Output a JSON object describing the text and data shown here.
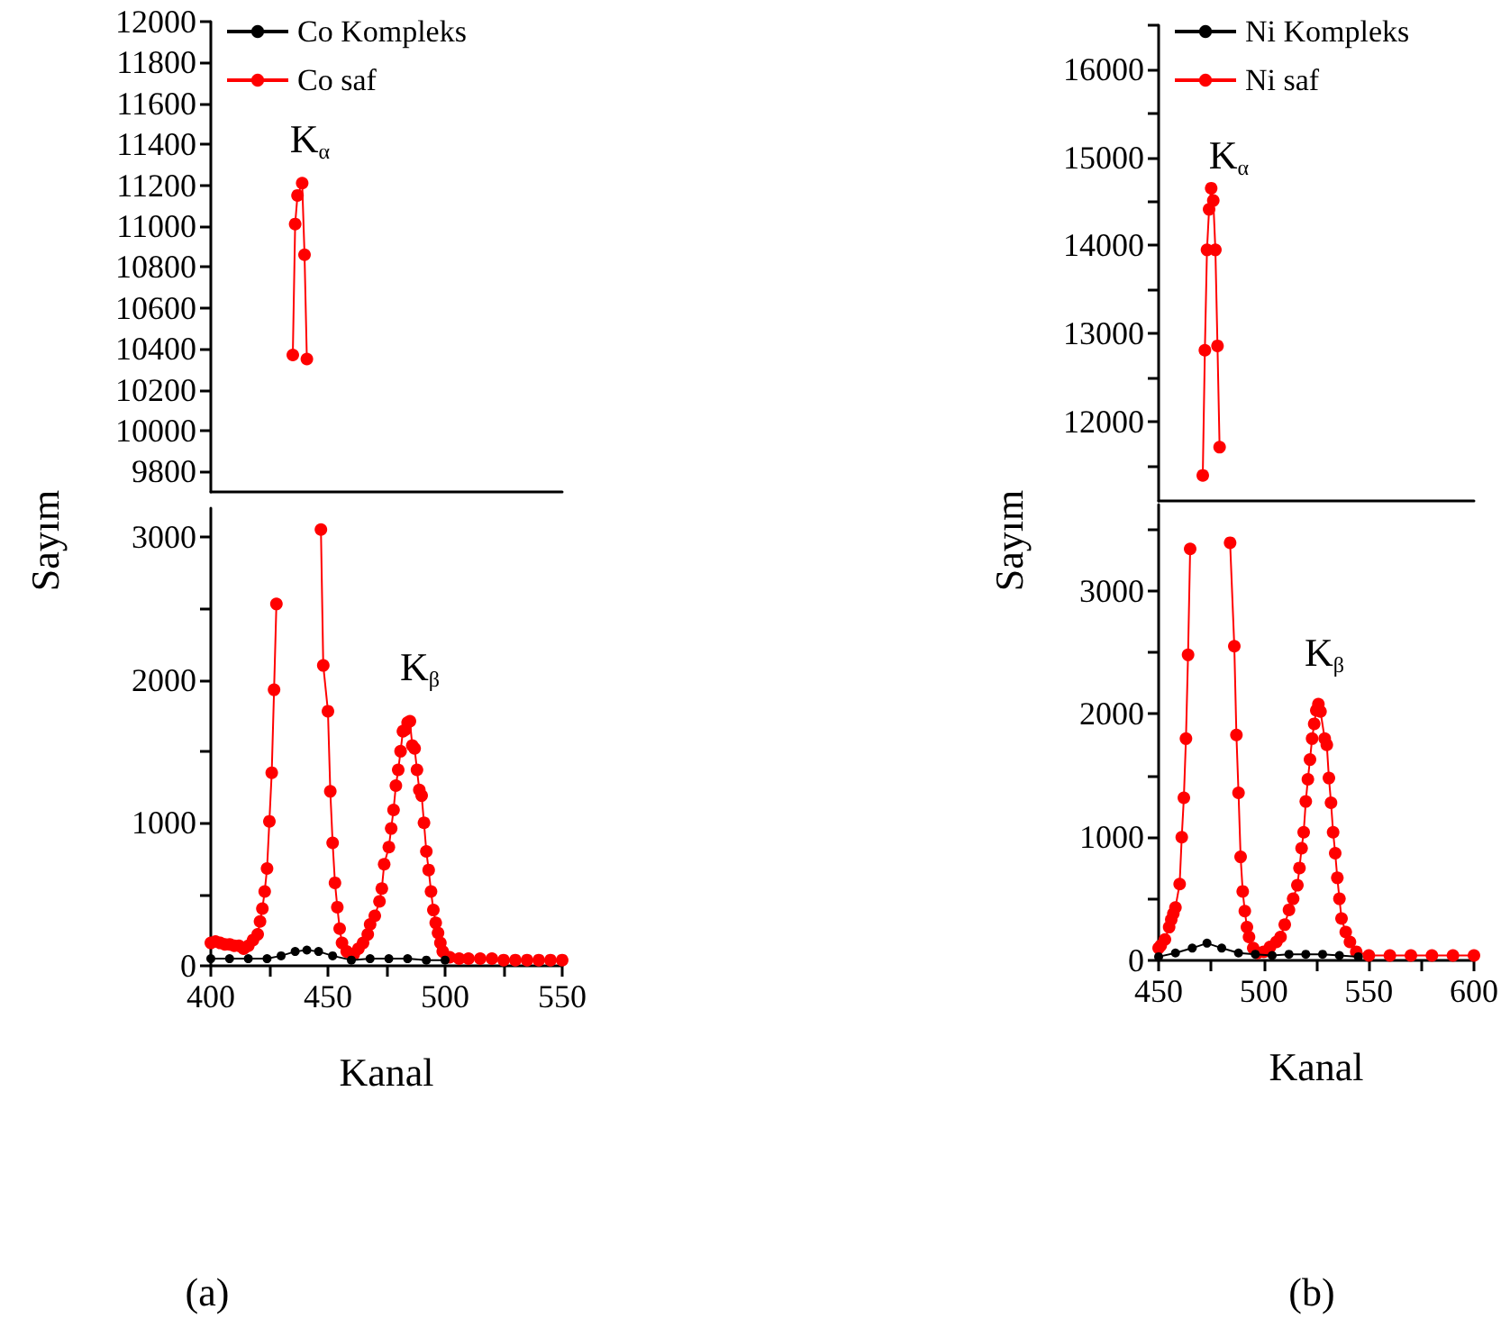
{
  "chart_data": [
    {
      "type": "line",
      "xlim": [
        400,
        550
      ],
      "ylim": [
        9700,
        12000
      ],
      "yticks": [
        9800,
        10000,
        10200,
        10400,
        10600,
        10800,
        11000,
        11200,
        11400,
        11600,
        11800,
        12000
      ],
      "tick_labels": "y",
      "grid": false,
      "marker": "circle",
      "line_style": "solid",
      "annotations": [
        "K$_{α}$"
      ],
      "series": [
        {
          "color": "#ff0000",
          "x": [
            435,
            436,
            437,
            439,
            440,
            441
          ],
          "values": [
            10370,
            11010,
            11150,
            11210,
            10860,
            10350
          ]
        }
      ]
    },
    {
      "type": "line",
      "xlabel": "Kanal",
      "ylabel": "Sayım",
      "xlim": [
        400,
        550
      ],
      "ylim": [
        0,
        3200
      ],
      "xticks": [
        400,
        {
          "value": 425,
          "label": null
        },
        450,
        {
          "value": 475,
          "label": null
        },
        500,
        {
          "value": 525,
          "label": null
        },
        550
      ],
      "yticks": [
        0,
        {
          "value": 500,
          "label": null
        },
        1000,
        {
          "value": 1500,
          "label": null
        },
        2000,
        {
          "value": 2500,
          "label": null
        },
        3000
      ],
      "grid": false,
      "legend": "top left",
      "marker": "circle",
      "line_style": "solid",
      "annotations": [
        "K$_{β}$",
        "(a)"
      ],
      "series": [
        {
          "name": "Co Kompleks",
          "color": "#000000",
          "x": [
            400,
            408,
            416,
            424,
            430,
            436,
            441,
            446,
            452,
            460,
            468,
            476,
            484,
            492,
            500
          ],
          "values": [
            50,
            50,
            50,
            50,
            70,
            100,
            110,
            100,
            70,
            40,
            50,
            50,
            50,
            40,
            40
          ]
        },
        {
          "name": "Co saf",
          "color": "#ff0000",
          "x": [
            400,
            402,
            404,
            406,
            408,
            410,
            412,
            414,
            416,
            418,
            420,
            421,
            422,
            423,
            424,
            425,
            426,
            427,
            428,
            429,
            447,
            448,
            450,
            451,
            452,
            453,
            454,
            455,
            456,
            458,
            460,
            461,
            463,
            465,
            467,
            468,
            470,
            472,
            473,
            474,
            476,
            477,
            478,
            479,
            480,
            481,
            482,
            483,
            484,
            485,
            486,
            487,
            488,
            489,
            490,
            491,
            492,
            493,
            494,
            495,
            496,
            497,
            498,
            499,
            502,
            506,
            510,
            515,
            520,
            525,
            530,
            535,
            540,
            545,
            550
          ],
          "values": [
            160,
            170,
            160,
            150,
            150,
            140,
            140,
            120,
            140,
            180,
            220,
            310,
            400,
            520,
            680,
            1010,
            1350,
            1930,
            2530,
            null,
            3050,
            2100,
            1780,
            1220,
            860,
            580,
            410,
            260,
            160,
            100,
            80,
            80,
            120,
            160,
            220,
            290,
            350,
            450,
            540,
            710,
            830,
            960,
            1090,
            1260,
            1370,
            1500,
            1640,
            1650,
            1700,
            1710,
            1540,
            1520,
            1370,
            1230,
            1190,
            1000,
            800,
            670,
            520,
            390,
            300,
            230,
            160,
            100,
            60,
            50,
            50,
            50,
            50,
            40,
            40,
            40,
            40,
            40,
            40
          ]
        }
      ]
    },
    {
      "type": "line",
      "xlim": [
        450,
        600
      ],
      "ylim": [
        11100,
        16500
      ],
      "yticks": [
        {
          "value": 11500,
          "label": null
        },
        12000,
        {
          "value": 12500,
          "label": null
        },
        13000,
        {
          "value": 13500,
          "label": null
        },
        14000,
        {
          "value": 14500,
          "label": null
        },
        15000,
        {
          "value": 15500,
          "label": null
        },
        16000,
        {
          "value": 16500,
          "label": null
        }
      ],
      "tick_labels": "y",
      "grid": false,
      "marker": "circle",
      "line_style": "solid",
      "annotations": [
        "K$_{α}$"
      ],
      "series": [
        {
          "color": "#ff0000",
          "x": [
            471,
            472,
            473,
            474,
            475,
            476,
            477,
            478,
            479
          ],
          "values": [
            11390,
            12810,
            13950,
            14410,
            14650,
            14510,
            13950,
            12860,
            11710
          ]
        }
      ]
    },
    {
      "type": "line",
      "xlabel": "Kanal",
      "ylabel": "Sayım",
      "xlim": [
        450,
        600
      ],
      "ylim": [
        0,
        3700
      ],
      "xticks": [
        450,
        {
          "value": 475,
          "label": null
        },
        500,
        {
          "value": 525,
          "label": null
        },
        550,
        {
          "value": 575,
          "label": null
        },
        600
      ],
      "yticks": [
        0,
        {
          "value": 500,
          "label": null
        },
        1000,
        {
          "value": 1500,
          "label": null
        },
        2000,
        {
          "value": 2500,
          "label": null
        },
        3000,
        {
          "value": 3500,
          "label": null
        }
      ],
      "grid": false,
      "legend": "top left",
      "marker": "circle",
      "line_style": "solid",
      "annotations": [
        "K$_{β}$",
        "(b)"
      ],
      "series": [
        {
          "name": "Ni Kompleks",
          "color": "#000000",
          "x": [
            450,
            458,
            466,
            473,
            480,
            488,
            496,
            504,
            512,
            520,
            528,
            536,
            545
          ],
          "values": [
            30,
            60,
            100,
            140,
            100,
            60,
            50,
            40,
            50,
            50,
            50,
            40,
            30
          ]
        },
        {
          "name": "Ni saf",
          "color": "#ff0000",
          "x": [
            450,
            451,
            453,
            455,
            456,
            457,
            458,
            460,
            461,
            462,
            463,
            464,
            465,
            466,
            484,
            486,
            487,
            488,
            489,
            490,
            491,
            492,
            493,
            495,
            497,
            500,
            503,
            506,
            508,
            510,
            512,
            514,
            516,
            517,
            518,
            519,
            520,
            521,
            522,
            523,
            524,
            525,
            526,
            527,
            529,
            530,
            531,
            532,
            533,
            534,
            535,
            536,
            537,
            539,
            541,
            544,
            550,
            560,
            570,
            580,
            590,
            600
          ],
          "values": [
            100,
            120,
            170,
            270,
            330,
            380,
            430,
            620,
            1000,
            1320,
            1800,
            2480,
            3340,
            null,
            3390,
            2550,
            1830,
            1360,
            840,
            560,
            400,
            270,
            190,
            100,
            60,
            70,
            110,
            150,
            190,
            290,
            410,
            500,
            610,
            750,
            910,
            1040,
            1290,
            1470,
            1630,
            1800,
            1920,
            2030,
            2080,
            2020,
            1800,
            1750,
            1480,
            1280,
            1040,
            870,
            670,
            500,
            340,
            230,
            150,
            70,
            40,
            40,
            40,
            40,
            40,
            40
          ]
        }
      ]
    }
  ]
}
